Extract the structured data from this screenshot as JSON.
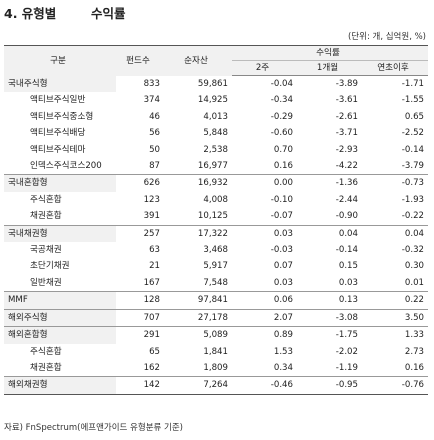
{
  "title": {
    "number": "4. 유형별",
    "label": "수익률"
  },
  "unit_note": "(단위: 개, 십억원, %)",
  "table": {
    "headers": {
      "type": "구분",
      "fund_count": "펀드수",
      "net_assets": "순자산",
      "returns_group": "수익률",
      "ret_2w": "2주",
      "ret_1m": "1개월",
      "ret_ytd": "연초이후"
    },
    "rows": [
      {
        "name": "국내주식형",
        "count": "833",
        "assets": "59,861",
        "w2": "-0.04",
        "m1": "-3.89",
        "ytd": "-1.71",
        "kind": "cat"
      },
      {
        "name": "액티브주식일반",
        "count": "374",
        "assets": "14,925",
        "w2": "-0.34",
        "m1": "-3.61",
        "ytd": "-1.55",
        "kind": "sub1"
      },
      {
        "name": "액티브주식중소형",
        "count": "46",
        "assets": "4,013",
        "w2": "-0.29",
        "m1": "-2.61",
        "ytd": "0.65",
        "kind": "sub1"
      },
      {
        "name": "액티브주식배당",
        "count": "56",
        "assets": "5,848",
        "w2": "-0.60",
        "m1": "-3.71",
        "ytd": "-2.52",
        "kind": "sub1"
      },
      {
        "name": "액티브주식테마",
        "count": "50",
        "assets": "2,538",
        "w2": "0.70",
        "m1": "-2.93",
        "ytd": "-0.14",
        "kind": "sub1"
      },
      {
        "name": "인덱스주식코스200",
        "count": "87",
        "assets": "16,977",
        "w2": "0.16",
        "m1": "-4.22",
        "ytd": "-3.79",
        "kind": "sub1"
      },
      {
        "name": "국내혼합형",
        "count": "626",
        "assets": "16,932",
        "w2": "0.00",
        "m1": "-1.36",
        "ytd": "-0.73",
        "kind": "cat"
      },
      {
        "name": "주식혼합",
        "count": "123",
        "assets": "4,008",
        "w2": "-0.10",
        "m1": "-2.44",
        "ytd": "-1.93",
        "kind": "sub2"
      },
      {
        "name": "채권혼합",
        "count": "391",
        "assets": "10,125",
        "w2": "-0.07",
        "m1": "-0.90",
        "ytd": "-0.22",
        "kind": "sub2"
      },
      {
        "name": "국내채권형",
        "count": "257",
        "assets": "17,322",
        "w2": "0.03",
        "m1": "0.04",
        "ytd": "0.04",
        "kind": "cat"
      },
      {
        "name": "국공채권",
        "count": "63",
        "assets": "3,468",
        "w2": "-0.03",
        "m1": "-0.14",
        "ytd": "-0.32",
        "kind": "sub2"
      },
      {
        "name": "초단기채권",
        "count": "21",
        "assets": "5,917",
        "w2": "0.07",
        "m1": "0.15",
        "ytd": "0.30",
        "kind": "sub2"
      },
      {
        "name": "일반채권",
        "count": "167",
        "assets": "7,548",
        "w2": "0.03",
        "m1": "0.03",
        "ytd": "0.01",
        "kind": "sub2"
      },
      {
        "name": "MMF",
        "count": "128",
        "assets": "97,841",
        "w2": "0.06",
        "m1": "0.13",
        "ytd": "0.22",
        "kind": "cat"
      },
      {
        "name": "해외주식형",
        "count": "707",
        "assets": "27,178",
        "w2": "2.07",
        "m1": "-3.08",
        "ytd": "3.50",
        "kind": "cat"
      },
      {
        "name": "해외혼합형",
        "count": "291",
        "assets": "5,089",
        "w2": "0.89",
        "m1": "-1.75",
        "ytd": "1.33",
        "kind": "cat"
      },
      {
        "name": "주식혼합",
        "count": "65",
        "assets": "1,841",
        "w2": "1.53",
        "m1": "-2.02",
        "ytd": "2.73",
        "kind": "sub2"
      },
      {
        "name": "채권혼합",
        "count": "162",
        "assets": "1,809",
        "w2": "0.34",
        "m1": "-1.19",
        "ytd": "0.16",
        "kind": "sub2"
      },
      {
        "name": "해외채권형",
        "count": "142",
        "assets": "7,264",
        "w2": "-0.46",
        "m1": "-0.95",
        "ytd": "-0.76",
        "kind": "cat"
      }
    ]
  },
  "source": "자료) FnSpectrum(에프앤가이드 유형분류 기준)"
}
